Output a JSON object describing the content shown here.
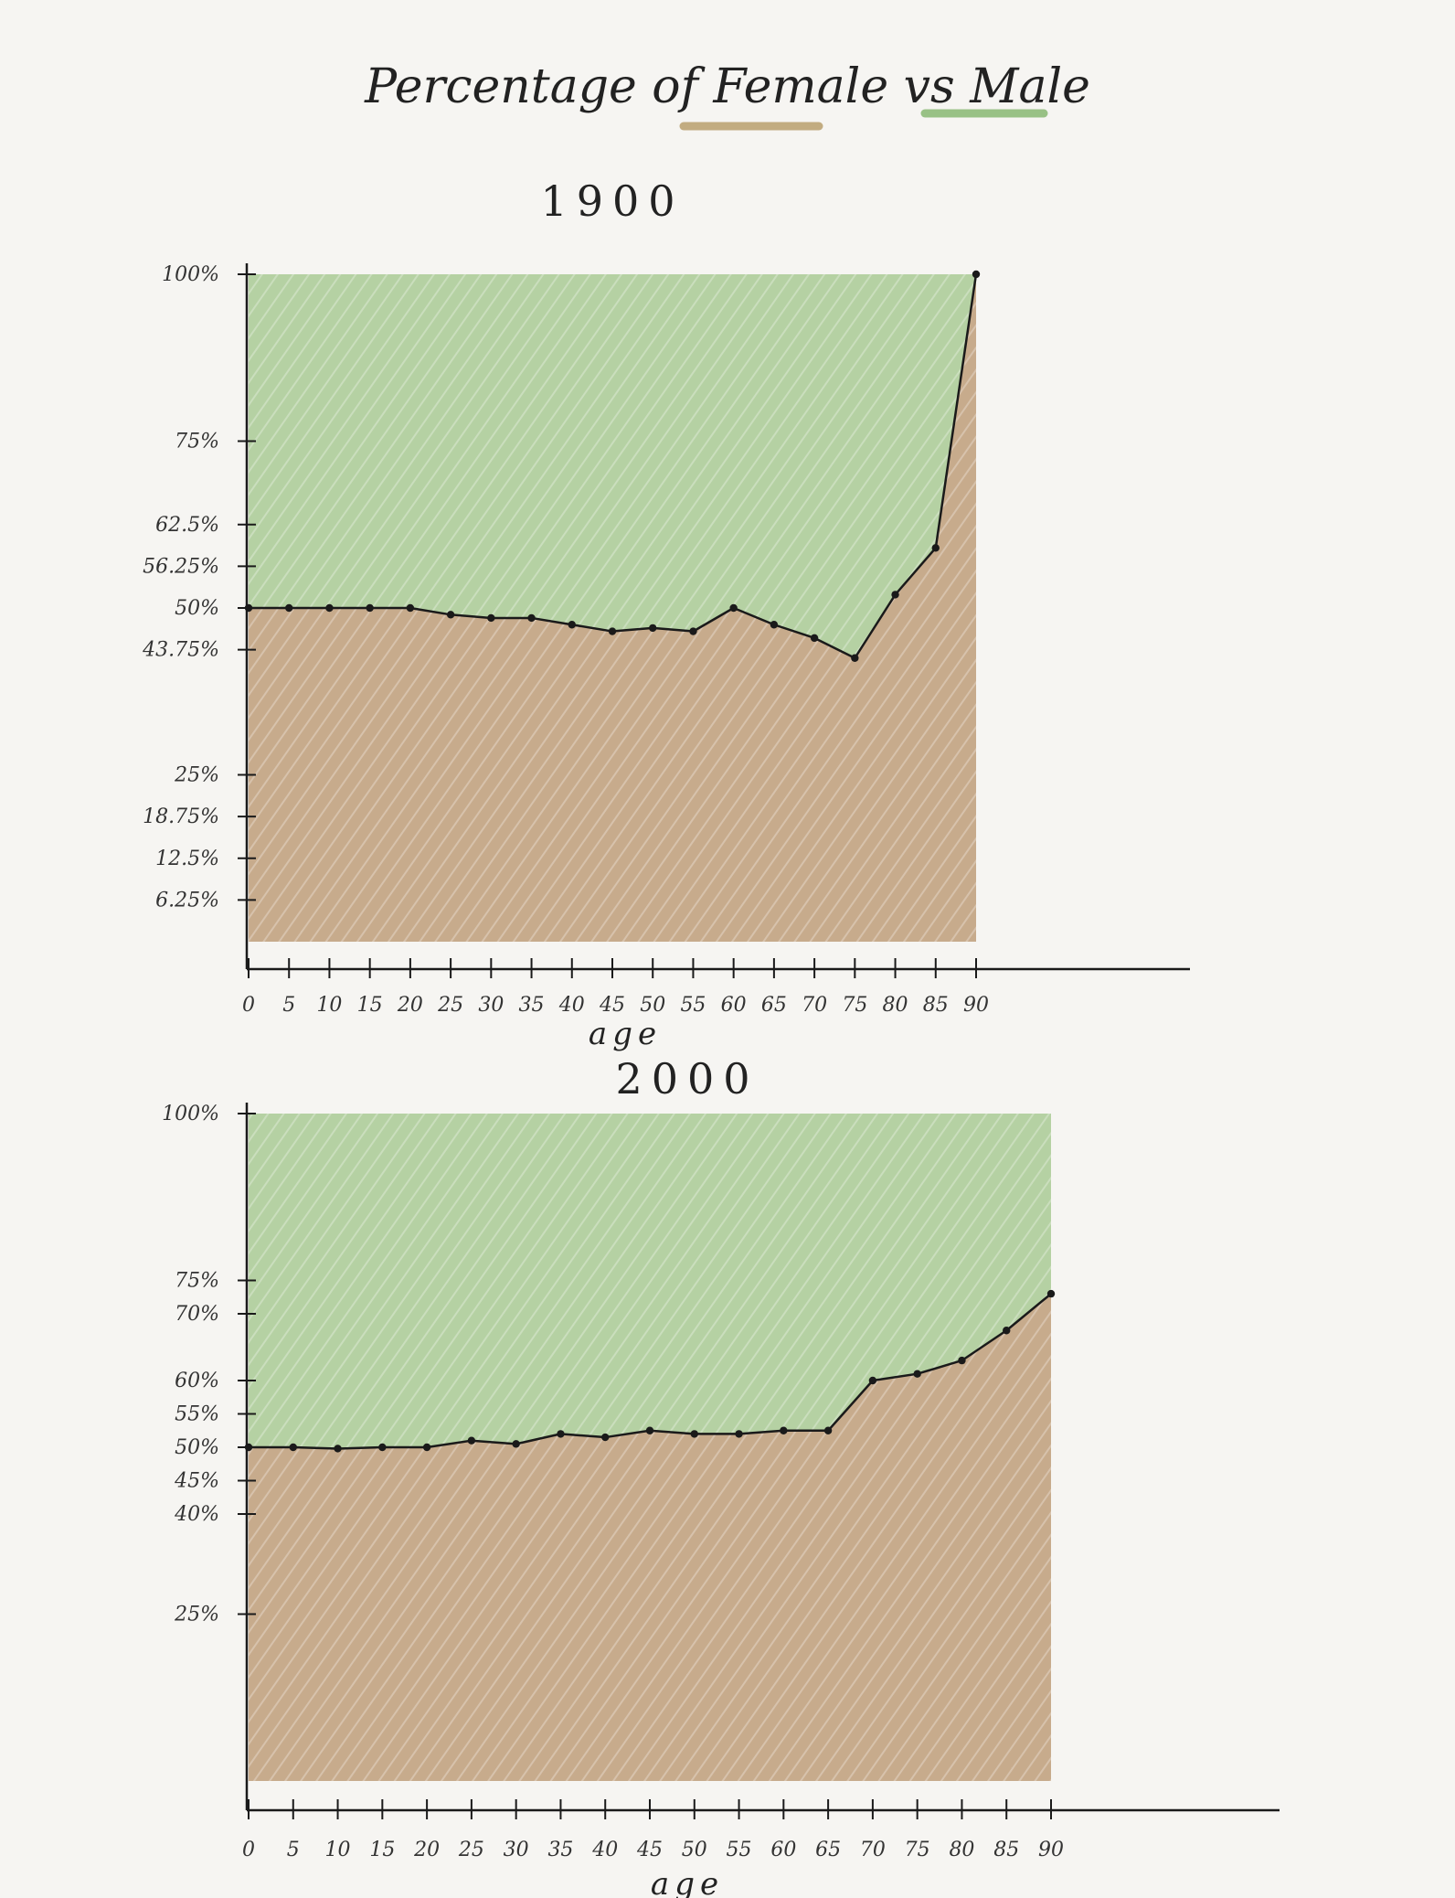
{
  "header": {
    "title": "Percentage of Female vs Male",
    "title_parts": [
      "Percentage of",
      "Female",
      "vs",
      "Male"
    ]
  },
  "colors": {
    "male_fill": "#8dbb72",
    "female_fill": "#c9a68a",
    "line": "#1a1a1a",
    "paper": "#f6f5f2",
    "female_underline": "#b9a06e",
    "male_underline": "#88b872"
  },
  "chart_data": [
    {
      "type": "area",
      "year_label": "1900",
      "xlabel": "age",
      "x": [
        0,
        5,
        10,
        15,
        20,
        25,
        30,
        35,
        40,
        45,
        50,
        55,
        60,
        65,
        70,
        75,
        80,
        85,
        90
      ],
      "series": [
        {
          "values": [
            50,
            50,
            50,
            50,
            50,
            49,
            48.5,
            48.5,
            47.5,
            46.5,
            47,
            46.5,
            50,
            47.5,
            45.5,
            42.5,
            52,
            59,
            100
          ]
        }
      ],
      "ylim": [
        0,
        100
      ],
      "xlim": [
        0,
        90
      ],
      "y_tick_labels": [
        {
          "v": 100,
          "label": "100%"
        },
        {
          "v": 75,
          "label": "75%"
        },
        {
          "v": 62.5,
          "label": "62.5%"
        },
        {
          "v": 56.25,
          "label": "56.25%"
        },
        {
          "v": 50,
          "label": "50%"
        },
        {
          "v": 43.75,
          "label": "43.75%"
        },
        {
          "v": 25,
          "label": "25%"
        },
        {
          "v": 18.75,
          "label": "18.75%"
        },
        {
          "v": 12.5,
          "label": "12.5%"
        },
        {
          "v": 6.25,
          "label": "6.25%"
        }
      ],
      "x_tick_labels": [
        "0",
        "5",
        "10",
        "15",
        "20",
        "25",
        "30",
        "35",
        "40",
        "45",
        "50",
        "55",
        "60",
        "65",
        "70",
        "75",
        "80",
        "85",
        "90"
      ]
    },
    {
      "type": "area",
      "year_label": "2000",
      "xlabel": "age",
      "x": [
        0,
        5,
        10,
        15,
        20,
        25,
        30,
        35,
        40,
        45,
        50,
        55,
        60,
        65,
        70,
        75,
        80,
        85,
        90
      ],
      "series": [
        {
          "values": [
            50,
            50,
            49.8,
            50,
            50,
            51,
            50.5,
            52,
            51.5,
            52.5,
            52,
            52,
            52.5,
            52.5,
            60,
            61,
            63,
            67.5,
            73
          ]
        }
      ],
      "ylim": [
        0,
        100
      ],
      "xlim": [
        0,
        90
      ],
      "y_tick_labels": [
        {
          "v": 100,
          "label": "100%"
        },
        {
          "v": 75,
          "label": "75%"
        },
        {
          "v": 70,
          "label": "70%"
        },
        {
          "v": 60,
          "label": "60%"
        },
        {
          "v": 55,
          "label": "55%"
        },
        {
          "v": 50,
          "label": "50%"
        },
        {
          "v": 45,
          "label": "45%"
        },
        {
          "v": 40,
          "label": "40%"
        },
        {
          "v": 25,
          "label": "25%"
        }
      ],
      "x_tick_labels": [
        "0",
        "5",
        "10",
        "15",
        "20",
        "25",
        "30",
        "35",
        "40",
        "45",
        "50",
        "55",
        "60",
        "65",
        "70",
        "75",
        "80",
        "85",
        "90"
      ]
    }
  ]
}
